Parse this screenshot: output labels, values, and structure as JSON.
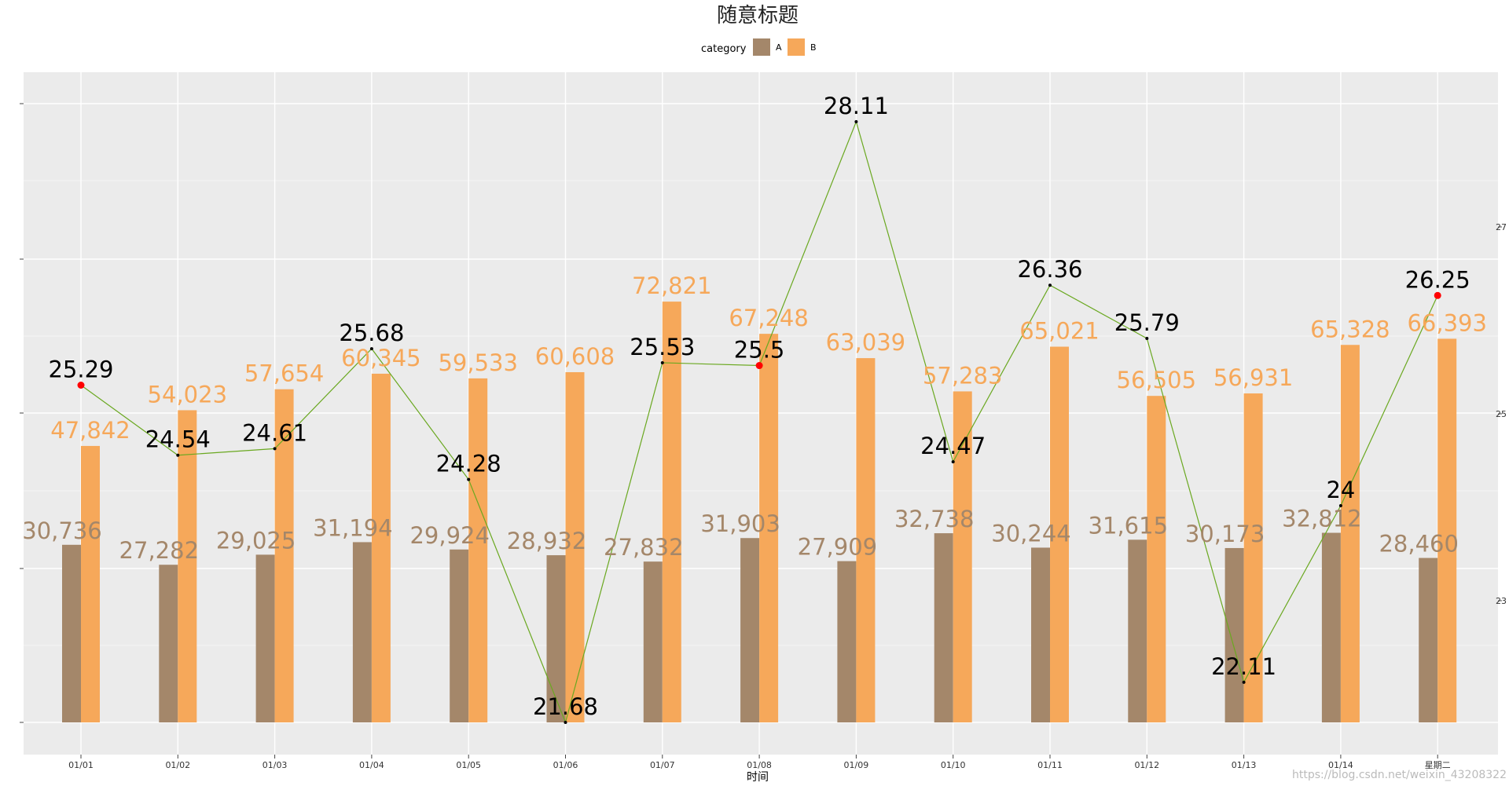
{
  "chart_data": {
    "type": "bar",
    "title": "随意标题",
    "xlabel": "时间",
    "legend_title": "category",
    "legend_position": "top",
    "grid": true,
    "categories": [
      "01/01",
      "01/02",
      "01/03",
      "01/04",
      "01/05",
      "01/06",
      "01/07",
      "01/08",
      "01/09",
      "01/10",
      "01/11",
      "01/12",
      "01/13",
      "01/14",
      "星期二"
    ],
    "ylim": [
      0,
      104000
    ],
    "y2lim": [
      21.68,
      28.11
    ],
    "y2_ticks": [
      "23",
      "25",
      "27"
    ],
    "series": [
      {
        "name": "A",
        "type": "bar",
        "color": "#a4876a",
        "values": [
          30736,
          27282,
          29025,
          31194,
          29924,
          28932,
          27832,
          31903,
          27909,
          32738,
          30244,
          31615,
          30173,
          32812,
          28460
        ],
        "labels": [
          "30,736",
          "27,282",
          "29,025",
          "31,194",
          "29,924",
          "28,932",
          "27,832",
          "31,903",
          "27,909",
          "32,738",
          "30,244",
          "31,615",
          "30,173",
          "32,812",
          "28,460"
        ]
      },
      {
        "name": "B",
        "type": "bar",
        "color": "#f6a85a",
        "values": [
          47842,
          54023,
          57654,
          60345,
          59533,
          60608,
          72821,
          67248,
          63039,
          57283,
          65021,
          56505,
          56931,
          65328,
          66393
        ],
        "labels": [
          "47,842",
          "54,023",
          "57,654",
          "60,345",
          "59,533",
          "60,608",
          "72,821",
          "67,248",
          "63,039",
          "57,283",
          "65,021",
          "56,505",
          "56,931",
          "65,328",
          "66,393"
        ]
      },
      {
        "type": "line",
        "axis": "right",
        "color": "#6aa820",
        "values": [
          25.29,
          24.54,
          24.61,
          25.68,
          24.28,
          21.68,
          25.53,
          25.5,
          28.11,
          24.47,
          26.36,
          25.79,
          22.11,
          24,
          26.25
        ],
        "labels": [
          "25.29",
          "24.54",
          "24.61",
          "25.68",
          "24.28",
          "21.68",
          "25.53",
          "25.5",
          "28.11",
          "24.47",
          "26.36",
          "25.79",
          "22.11",
          "24",
          "26.25"
        ],
        "highlight_color": "#ff0000",
        "highlight_points": [
          "01/01",
          "01/08",
          "星期二"
        ]
      }
    ]
  },
  "watermark": "https://blog.csdn.net/weixin_43208322"
}
